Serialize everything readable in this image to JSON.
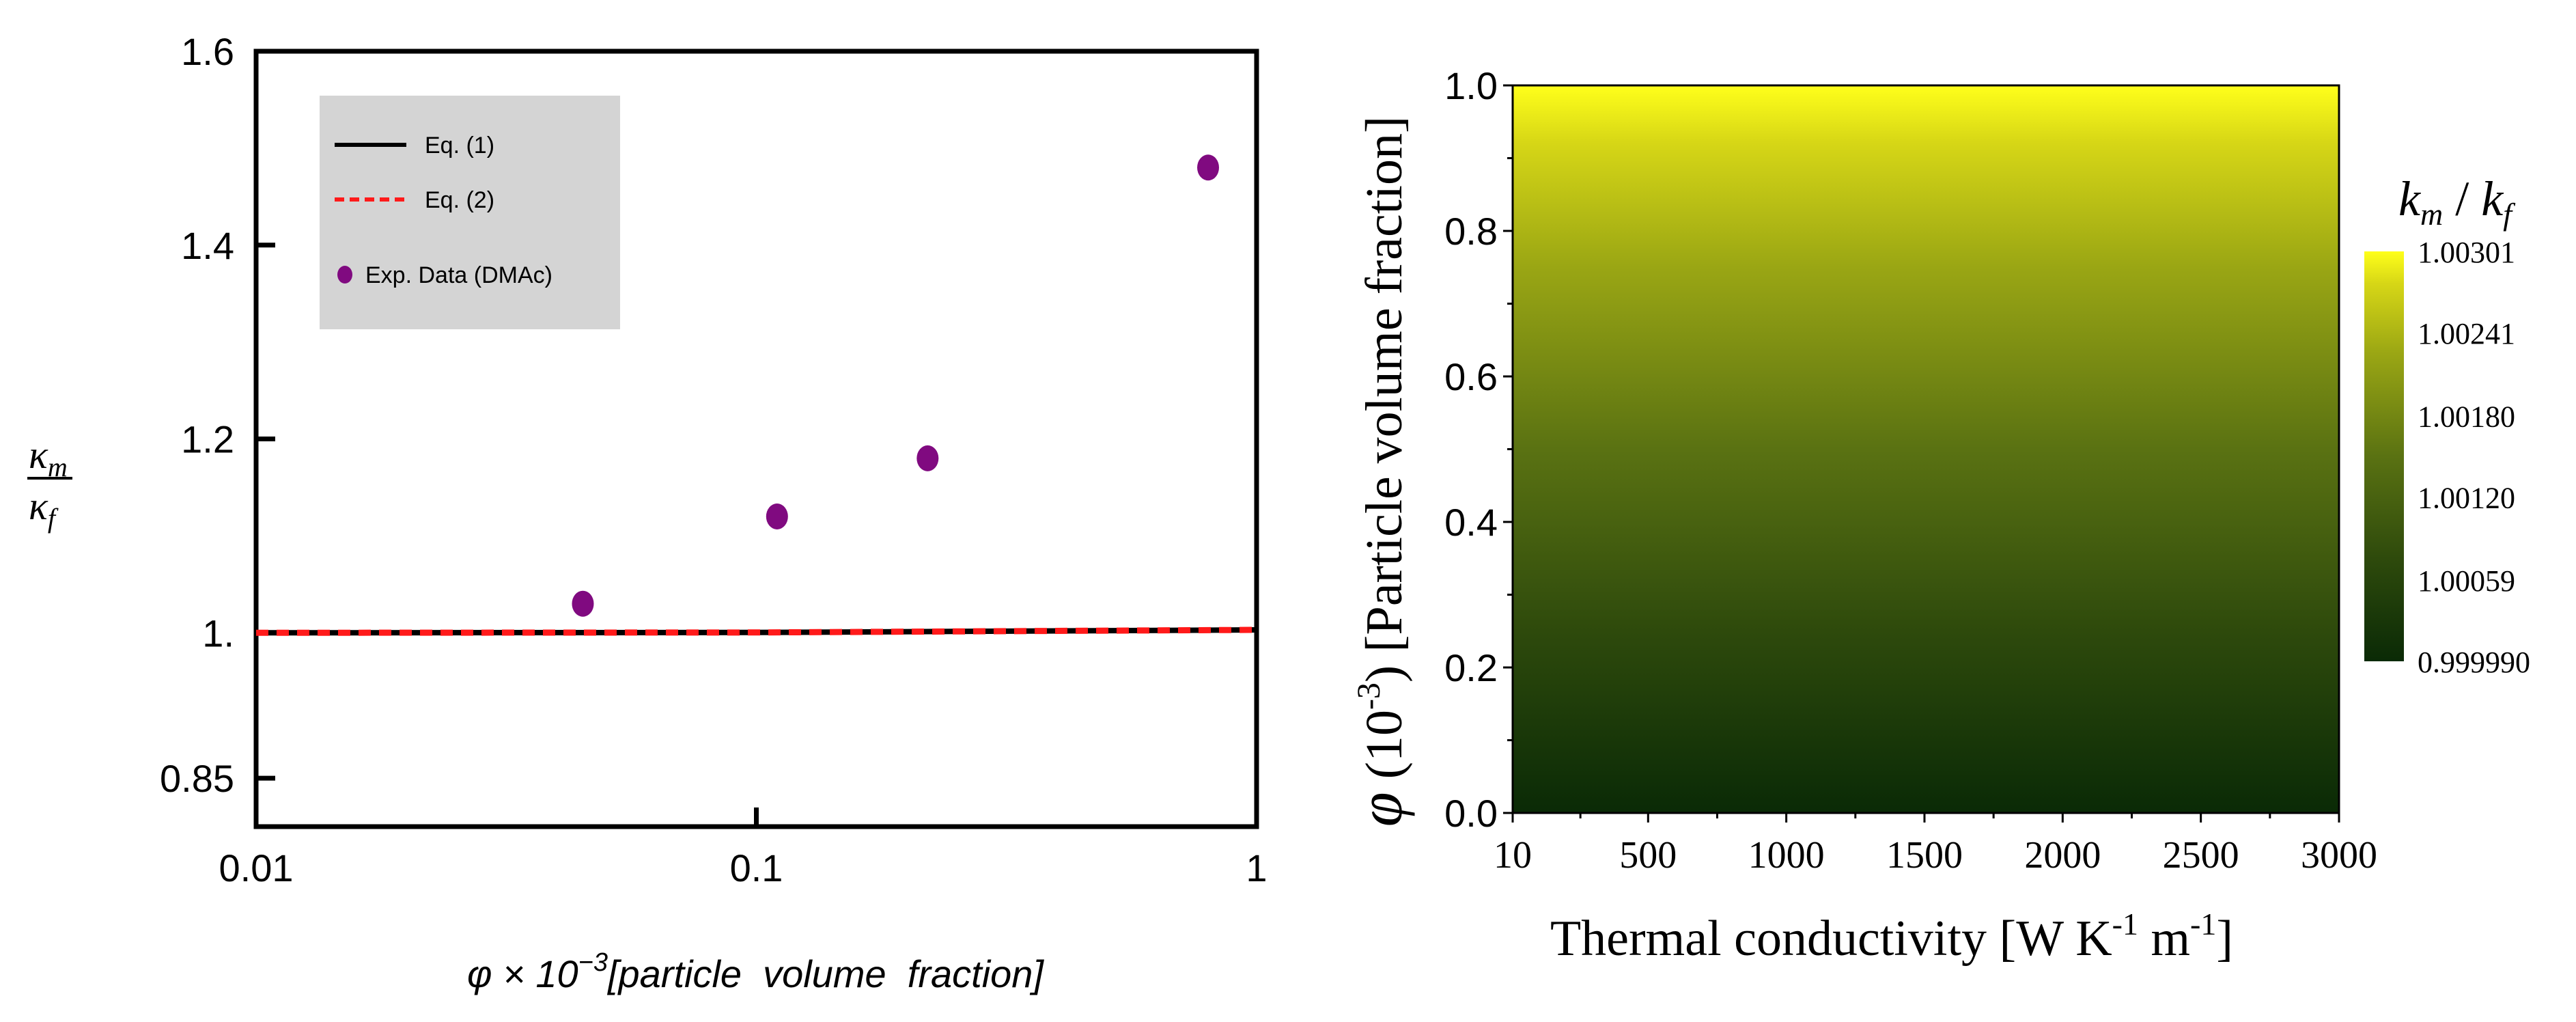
{
  "chart_data": [
    {
      "type": "scatter",
      "title": "",
      "xscale": "log",
      "xlim": [
        0.01,
        1
      ],
      "ylim": [
        0.8,
        1.6
      ],
      "grid": false,
      "legend_position": "top-left",
      "xticks": [
        {
          "value": 0.01,
          "label": "0.01"
        },
        {
          "value": 0.1,
          "label": "0.1"
        },
        {
          "value": 1,
          "label": "1"
        }
      ],
      "yticks": [
        {
          "value": 0.85,
          "label": "0.85"
        },
        {
          "value": 1.0,
          "label": "1."
        },
        {
          "value": 1.2,
          "label": "1.2"
        },
        {
          "value": 1.4,
          "label": "1.4"
        },
        {
          "value": 1.6,
          "label": "1.6"
        }
      ],
      "xlabel_parts": {
        "prefix": "φ × 10",
        "exponent": "−3",
        "suffix": "[particle  volume  fraction]"
      },
      "ylabel_parts": {
        "numerator": "κ",
        "numerator_sub": "m",
        "denominator": "κ",
        "denominator_sub": "f"
      },
      "series": [
        {
          "name": "Eq. (1)",
          "kind": "line",
          "color": "#000000",
          "dash": "solid",
          "x": [
            0.01,
            0.1,
            1
          ],
          "y": [
            1.0,
            1.0003,
            1.003
          ]
        },
        {
          "name": "Eq. (2)",
          "kind": "line",
          "color": "#ff1a1a",
          "dash": "dashed",
          "x": [
            0.01,
            0.1,
            1
          ],
          "y": [
            1.0,
            1.0003,
            1.003
          ]
        },
        {
          "name": "Exp. Data (DMAc)",
          "kind": "points",
          "color": "#800a80",
          "x": [
            0.045,
            0.11,
            0.22,
            0.8
          ],
          "y": [
            1.03,
            1.12,
            1.18,
            1.48
          ]
        }
      ]
    },
    {
      "type": "heatmap",
      "title": "",
      "xlim": [
        10,
        3000
      ],
      "ylim": [
        0.0,
        1.0
      ],
      "xticks": [
        10,
        500,
        1000,
        1500,
        2000,
        2500,
        3000
      ],
      "xtick_labels": [
        "10",
        "500",
        "1000",
        "1500",
        "2000",
        "2500",
        "3000"
      ],
      "yticks": [
        0.0,
        0.2,
        0.4,
        0.6,
        0.8,
        1.0
      ],
      "ytick_labels": [
        "0.0",
        "0.2",
        "0.4",
        "0.6",
        "0.8",
        "1.0"
      ],
      "xlabel_parts": {
        "text": "Thermal conductivity [W K",
        "exp1": "-1",
        "mid": " m",
        "exp2": "-1",
        "end": "]"
      },
      "ylabel_parts": {
        "phi": "φ",
        "paren_open": " (10",
        "exp": "-3",
        "rest": ") [Particle volume fraction]"
      },
      "value_range": [
        0.99999,
        1.00301
      ],
      "gradient_direction": "vertical (value increases with particle volume fraction)",
      "colorbar": {
        "title_parts": {
          "k1": "k",
          "s1": "m",
          "slash": " / ",
          "k2": "k",
          "s2": "f"
        },
        "ticks": [
          {
            "value": 1.00301,
            "label": "1.00301"
          },
          {
            "value": 1.00241,
            "label": "1.00241"
          },
          {
            "value": 1.0018,
            "label": "1.00180"
          },
          {
            "value": 1.0012,
            "label": "1.00120"
          },
          {
            "value": 1.00059,
            "label": "1.00059"
          },
          {
            "value": 0.99999,
            "label": "0.999990"
          }
        ],
        "color_low": "#0a2a06",
        "color_mid": "#6e8a14",
        "color_high": "#ffff1a"
      }
    }
  ]
}
